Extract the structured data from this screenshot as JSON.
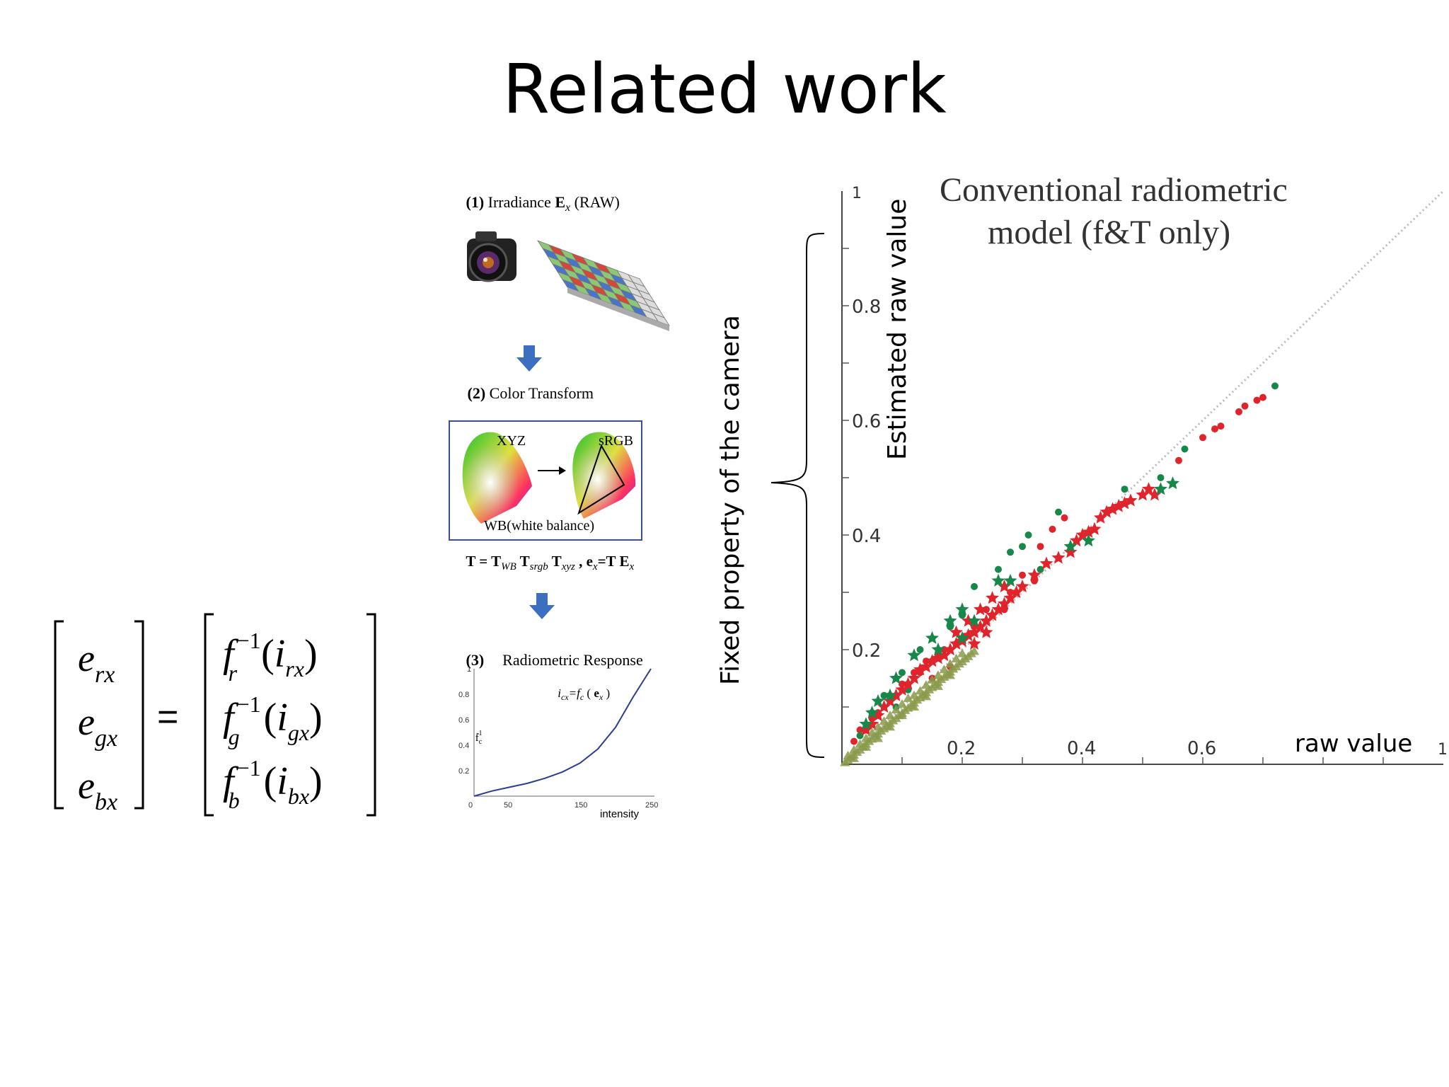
{
  "slide": {
    "title": "Related work",
    "side_label": "Fixed property of the camera"
  },
  "equation": {
    "equals": "=",
    "lhs": [
      {
        "var": "e",
        "sub": "rx"
      },
      {
        "var": "e",
        "sub": "gx"
      },
      {
        "var": "e",
        "sub": "bx"
      }
    ],
    "rhs": [
      {
        "func": "f",
        "sub": "r",
        "sup": "−1",
        "open": "(",
        "arg": "i",
        "arg_sub": "rx",
        "close": ")"
      },
      {
        "func": "f",
        "sub": "g",
        "sup": "−1",
        "open": "(",
        "arg": "i",
        "arg_sub": "gx",
        "close": ")"
      },
      {
        "func": "f",
        "sub": "b",
        "sup": "−1",
        "open": "(",
        "arg": "i",
        "arg_sub": "bx",
        "close": ")"
      }
    ]
  },
  "pipeline": {
    "step1": {
      "num": "(1)",
      "text": "Irradiance ",
      "bold_symbol": "E",
      "sub": "x",
      "suffix": " (RAW)"
    },
    "step2": {
      "num": "(2)",
      "text": "Color Transform"
    },
    "gamut_left": "XYZ",
    "gamut_right": "sRGB",
    "wb_caption": "WB(white balance)",
    "formula": {
      "t1": "T = T",
      "s1": "WB",
      "t2": " T",
      "s2": "srgb",
      "t3": " T",
      "s3": "xyz",
      "t4": " , e",
      "s4": "x",
      "t5": "=T E",
      "s5": "x"
    },
    "step3": {
      "num": "(3)",
      "text": "Radiometric Response"
    },
    "mini_chart": {
      "equation": {
        "i": "i",
        "i_sub": "cx",
        "mid": "=f",
        "f_sub": "c",
        "open": " ( ",
        "e": "e",
        "e_sub": "x",
        "close": " )"
      },
      "ylabel": {
        "f": "f",
        "sub": "c",
        "sup": "-1"
      },
      "xlabel": "intensity",
      "x_ticks": [
        "0",
        "50",
        "150",
        "250"
      ],
      "y_ticks": [
        "1",
        "0.8",
        "0.6",
        "0.4",
        "0.2"
      ],
      "curve_x": [
        0,
        25,
        50,
        75,
        100,
        125,
        150,
        175,
        200,
        225,
        250
      ],
      "curve_y": [
        0.0,
        0.04,
        0.07,
        0.1,
        0.14,
        0.19,
        0.26,
        0.37,
        0.54,
        0.78,
        1.0
      ]
    },
    "colors": {
      "arrow": "#3c6fbf",
      "box": "#3c4f8c",
      "curve": "#2b3e8f"
    }
  },
  "chart_data": {
    "type": "scatter",
    "title": [
      "Conventional radiometric",
      "model (f&T only)"
    ],
    "xlabel": "raw value",
    "ylabel": "Estimated raw value",
    "xlim": [
      0,
      1
    ],
    "ylim": [
      0,
      1
    ],
    "x_ticks": [
      {
        "value": 0.2,
        "label": "0.2"
      },
      {
        "value": 0.4,
        "label": "0.4"
      },
      {
        "value": 0.6,
        "label": "0.6"
      },
      {
        "value": 1,
        "label": "1"
      }
    ],
    "y_ticks": [
      {
        "value": 0.2,
        "label": "0.2"
      },
      {
        "value": 0.4,
        "label": "0.4"
      },
      {
        "value": 0.6,
        "label": "0.6"
      },
      {
        "value": 0.8,
        "label": "0.8"
      },
      {
        "value": 1,
        "label": "1"
      }
    ],
    "reference_line": {
      "from": [
        0,
        0
      ],
      "to": [
        1,
        1
      ],
      "style": "dotted"
    },
    "series": [
      {
        "marker": "dot",
        "color": "#e0242c",
        "points": [
          [
            0.7,
            0.64
          ],
          [
            0.69,
            0.635
          ],
          [
            0.67,
            0.625
          ],
          [
            0.66,
            0.615
          ],
          [
            0.63,
            0.59
          ],
          [
            0.62,
            0.585
          ],
          [
            0.6,
            0.57
          ],
          [
            0.56,
            0.53
          ],
          [
            0.37,
            0.43
          ],
          [
            0.35,
            0.41
          ],
          [
            0.33,
            0.38
          ],
          [
            0.3,
            0.33
          ],
          [
            0.28,
            0.3
          ],
          [
            0.24,
            0.27
          ],
          [
            0.22,
            0.24
          ],
          [
            0.2,
            0.22
          ],
          [
            0.17,
            0.2
          ],
          [
            0.14,
            0.18
          ],
          [
            0.12,
            0.16
          ],
          [
            0.1,
            0.14
          ],
          [
            0.08,
            0.12
          ],
          [
            0.05,
            0.08
          ],
          [
            0.03,
            0.06
          ],
          [
            0.02,
            0.04
          ],
          [
            0.04,
            0.06
          ],
          [
            0.06,
            0.09
          ],
          [
            0.09,
            0.12
          ],
          [
            0.11,
            0.14
          ],
          [
            0.13,
            0.16
          ],
          [
            0.16,
            0.19
          ],
          [
            0.19,
            0.21
          ],
          [
            0.25,
            0.26
          ],
          [
            0.27,
            0.27
          ],
          [
            0.32,
            0.32
          ],
          [
            0.15,
            0.15
          ],
          [
            0.18,
            0.17
          ]
        ]
      },
      {
        "marker": "dot",
        "color": "#17874a",
        "points": [
          [
            0.72,
            0.66
          ],
          [
            0.57,
            0.55
          ],
          [
            0.53,
            0.5
          ],
          [
            0.47,
            0.48
          ],
          [
            0.36,
            0.44
          ],
          [
            0.31,
            0.4
          ],
          [
            0.3,
            0.38
          ],
          [
            0.28,
            0.37
          ],
          [
            0.33,
            0.34
          ],
          [
            0.26,
            0.34
          ],
          [
            0.22,
            0.31
          ],
          [
            0.2,
            0.26
          ],
          [
            0.18,
            0.24
          ],
          [
            0.13,
            0.2
          ],
          [
            0.1,
            0.16
          ],
          [
            0.07,
            0.12
          ],
          [
            0.05,
            0.09
          ],
          [
            0.03,
            0.05
          ],
          [
            0.09,
            0.1
          ],
          [
            0.11,
            0.13
          ],
          [
            0.15,
            0.18
          ]
        ]
      },
      {
        "marker": "star",
        "color": "#e0242c",
        "points": [
          [
            0.52,
            0.47
          ],
          [
            0.51,
            0.48
          ],
          [
            0.5,
            0.47
          ],
          [
            0.48,
            0.46
          ],
          [
            0.47,
            0.455
          ],
          [
            0.46,
            0.45
          ],
          [
            0.45,
            0.445
          ],
          [
            0.44,
            0.44
          ],
          [
            0.43,
            0.43
          ],
          [
            0.42,
            0.41
          ],
          [
            0.41,
            0.405
          ],
          [
            0.4,
            0.4
          ],
          [
            0.39,
            0.39
          ],
          [
            0.38,
            0.37
          ],
          [
            0.36,
            0.36
          ],
          [
            0.34,
            0.35
          ],
          [
            0.32,
            0.33
          ],
          [
            0.3,
            0.31
          ],
          [
            0.29,
            0.3
          ],
          [
            0.28,
            0.29
          ],
          [
            0.27,
            0.28
          ],
          [
            0.26,
            0.27
          ],
          [
            0.25,
            0.26
          ],
          [
            0.24,
            0.25
          ],
          [
            0.23,
            0.24
          ],
          [
            0.22,
            0.23
          ],
          [
            0.21,
            0.225
          ],
          [
            0.2,
            0.215
          ],
          [
            0.19,
            0.21
          ],
          [
            0.18,
            0.2
          ],
          [
            0.17,
            0.19
          ],
          [
            0.16,
            0.185
          ],
          [
            0.15,
            0.18
          ],
          [
            0.14,
            0.17
          ],
          [
            0.13,
            0.165
          ],
          [
            0.12,
            0.15
          ],
          [
            0.11,
            0.14
          ],
          [
            0.1,
            0.13
          ],
          [
            0.09,
            0.12
          ],
          [
            0.08,
            0.11
          ],
          [
            0.07,
            0.1
          ],
          [
            0.06,
            0.085
          ],
          [
            0.05,
            0.07
          ],
          [
            0.04,
            0.06
          ],
          [
            0.21,
            0.25
          ],
          [
            0.23,
            0.27
          ],
          [
            0.19,
            0.23
          ],
          [
            0.25,
            0.29
          ],
          [
            0.27,
            0.31
          ],
          [
            0.22,
            0.21
          ],
          [
            0.24,
            0.23
          ]
        ]
      },
      {
        "marker": "star",
        "color": "#17874a",
        "points": [
          [
            0.55,
            0.49
          ],
          [
            0.53,
            0.48
          ],
          [
            0.41,
            0.39
          ],
          [
            0.38,
            0.38
          ],
          [
            0.2,
            0.27
          ],
          [
            0.18,
            0.25
          ],
          [
            0.26,
            0.32
          ],
          [
            0.28,
            0.32
          ],
          [
            0.2,
            0.22
          ],
          [
            0.15,
            0.22
          ],
          [
            0.12,
            0.19
          ],
          [
            0.09,
            0.15
          ],
          [
            0.08,
            0.12
          ],
          [
            0.06,
            0.11
          ],
          [
            0.05,
            0.09
          ],
          [
            0.04,
            0.07
          ],
          [
            0.16,
            0.2
          ],
          [
            0.22,
            0.25
          ]
        ]
      },
      {
        "marker": "triangle",
        "color": "#8a9a4a",
        "points": [
          [
            0.005,
            0.003
          ],
          [
            0.01,
            0.007
          ],
          [
            0.015,
            0.012
          ],
          [
            0.02,
            0.016
          ],
          [
            0.025,
            0.021
          ],
          [
            0.03,
            0.025
          ],
          [
            0.035,
            0.03
          ],
          [
            0.04,
            0.035
          ],
          [
            0.045,
            0.04
          ],
          [
            0.05,
            0.044
          ],
          [
            0.055,
            0.049
          ],
          [
            0.06,
            0.053
          ],
          [
            0.065,
            0.058
          ],
          [
            0.07,
            0.062
          ],
          [
            0.075,
            0.067
          ],
          [
            0.08,
            0.071
          ],
          [
            0.085,
            0.076
          ],
          [
            0.09,
            0.08
          ],
          [
            0.095,
            0.085
          ],
          [
            0.1,
            0.089
          ],
          [
            0.105,
            0.094
          ],
          [
            0.11,
            0.098
          ],
          [
            0.115,
            0.103
          ],
          [
            0.12,
            0.107
          ],
          [
            0.125,
            0.112
          ],
          [
            0.13,
            0.116
          ],
          [
            0.135,
            0.121
          ],
          [
            0.14,
            0.125
          ],
          [
            0.145,
            0.13
          ],
          [
            0.15,
            0.134
          ],
          [
            0.155,
            0.139
          ],
          [
            0.16,
            0.143
          ],
          [
            0.165,
            0.148
          ],
          [
            0.17,
            0.152
          ],
          [
            0.175,
            0.157
          ],
          [
            0.18,
            0.161
          ],
          [
            0.185,
            0.166
          ],
          [
            0.19,
            0.17
          ],
          [
            0.195,
            0.175
          ],
          [
            0.2,
            0.179
          ],
          [
            0.205,
            0.184
          ],
          [
            0.21,
            0.188
          ],
          [
            0.215,
            0.193
          ],
          [
            0.22,
            0.197
          ],
          [
            0.01,
            0.015
          ],
          [
            0.02,
            0.025
          ],
          [
            0.03,
            0.035
          ],
          [
            0.04,
            0.045
          ],
          [
            0.05,
            0.055
          ],
          [
            0.06,
            0.065
          ],
          [
            0.07,
            0.075
          ],
          [
            0.08,
            0.085
          ],
          [
            0.09,
            0.095
          ],
          [
            0.1,
            0.105
          ],
          [
            0.11,
            0.115
          ],
          [
            0.12,
            0.12
          ],
          [
            0.13,
            0.128
          ],
          [
            0.14,
            0.138
          ],
          [
            0.15,
            0.147
          ],
          [
            0.16,
            0.155
          ],
          [
            0.17,
            0.165
          ],
          [
            0.18,
            0.175
          ],
          [
            0.19,
            0.184
          ],
          [
            0.2,
            0.193
          ],
          [
            0.02,
            0.01
          ],
          [
            0.04,
            0.03
          ],
          [
            0.06,
            0.045
          ],
          [
            0.08,
            0.065
          ],
          [
            0.1,
            0.085
          ],
          [
            0.12,
            0.1
          ],
          [
            0.14,
            0.118
          ],
          [
            0.16,
            0.136
          ],
          [
            0.18,
            0.155
          ]
        ]
      }
    ]
  }
}
